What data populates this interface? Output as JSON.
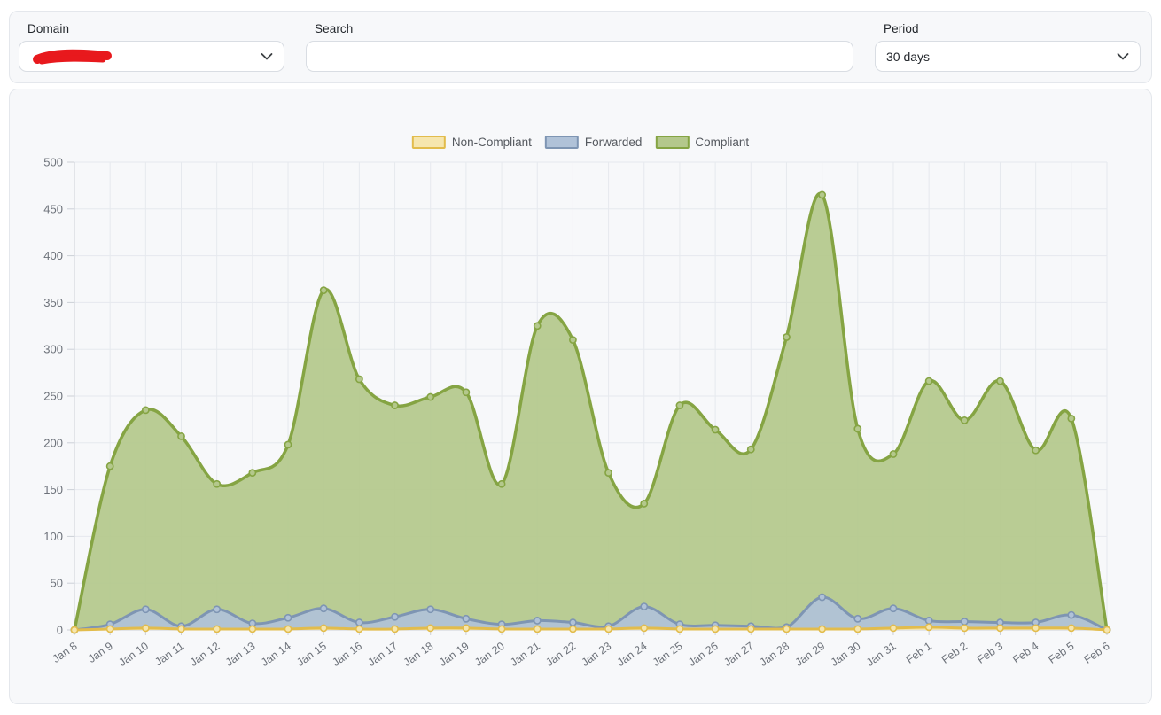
{
  "filter_bar": {
    "domain": {
      "label": "Domain",
      "value": "",
      "redacted": true,
      "redaction_color": "#e8191d"
    },
    "search": {
      "label": "Search",
      "value": "",
      "placeholder": ""
    },
    "period": {
      "label": "Period",
      "value": "30 days"
    }
  },
  "chart_data": {
    "type": "area",
    "stacked": false,
    "title": "",
    "xlabel": "",
    "ylabel": "",
    "ylim": [
      0,
      500
    ],
    "y_ticks": [
      0,
      50,
      100,
      150,
      200,
      250,
      300,
      350,
      400,
      450,
      500
    ],
    "grid": true,
    "legend_position": "top",
    "categories": [
      "Jan 8",
      "Jan 9",
      "Jan 10",
      "Jan 11",
      "Jan 12",
      "Jan 13",
      "Jan 14",
      "Jan 15",
      "Jan 16",
      "Jan 17",
      "Jan 18",
      "Jan 19",
      "Jan 20",
      "Jan 21",
      "Jan 22",
      "Jan 23",
      "Jan 24",
      "Jan 25",
      "Jan 26",
      "Jan 27",
      "Jan 28",
      "Jan 29",
      "Jan 30",
      "Jan 31",
      "Feb 1",
      "Feb 2",
      "Feb 3",
      "Feb 4",
      "Feb 5",
      "Feb 6"
    ],
    "series": [
      {
        "name": "Non-Compliant",
        "line_color": "#e2bc4c",
        "fill_color": "#f6e6ae",
        "values": [
          0,
          1,
          2,
          1,
          1,
          1,
          1,
          2,
          1,
          1,
          2,
          2,
          1,
          1,
          1,
          1,
          2,
          1,
          1,
          1,
          1,
          1,
          1,
          2,
          3,
          2,
          2,
          2,
          2,
          0
        ]
      },
      {
        "name": "Forwarded",
        "line_color": "#7e95b3",
        "fill_color": "#b0c2d8",
        "values": [
          0,
          6,
          22,
          4,
          22,
          7,
          13,
          23,
          8,
          14,
          22,
          12,
          6,
          10,
          8,
          4,
          25,
          6,
          5,
          4,
          3,
          35,
          12,
          23,
          10,
          9,
          8,
          8,
          16,
          0
        ]
      },
      {
        "name": "Compliant",
        "line_color": "#85a443",
        "fill_color": "#b4c88c",
        "values": [
          0,
          175,
          235,
          207,
          156,
          168,
          198,
          363,
          268,
          240,
          249,
          254,
          156,
          325,
          310,
          168,
          135,
          240,
          214,
          193,
          313,
          465,
          215,
          188,
          266,
          224,
          266,
          192,
          226,
          0
        ]
      }
    ],
    "axis_text_color": "#6d727a",
    "grid_color": "#e6e9ee",
    "axis_line_color": "#ccd0d7"
  }
}
